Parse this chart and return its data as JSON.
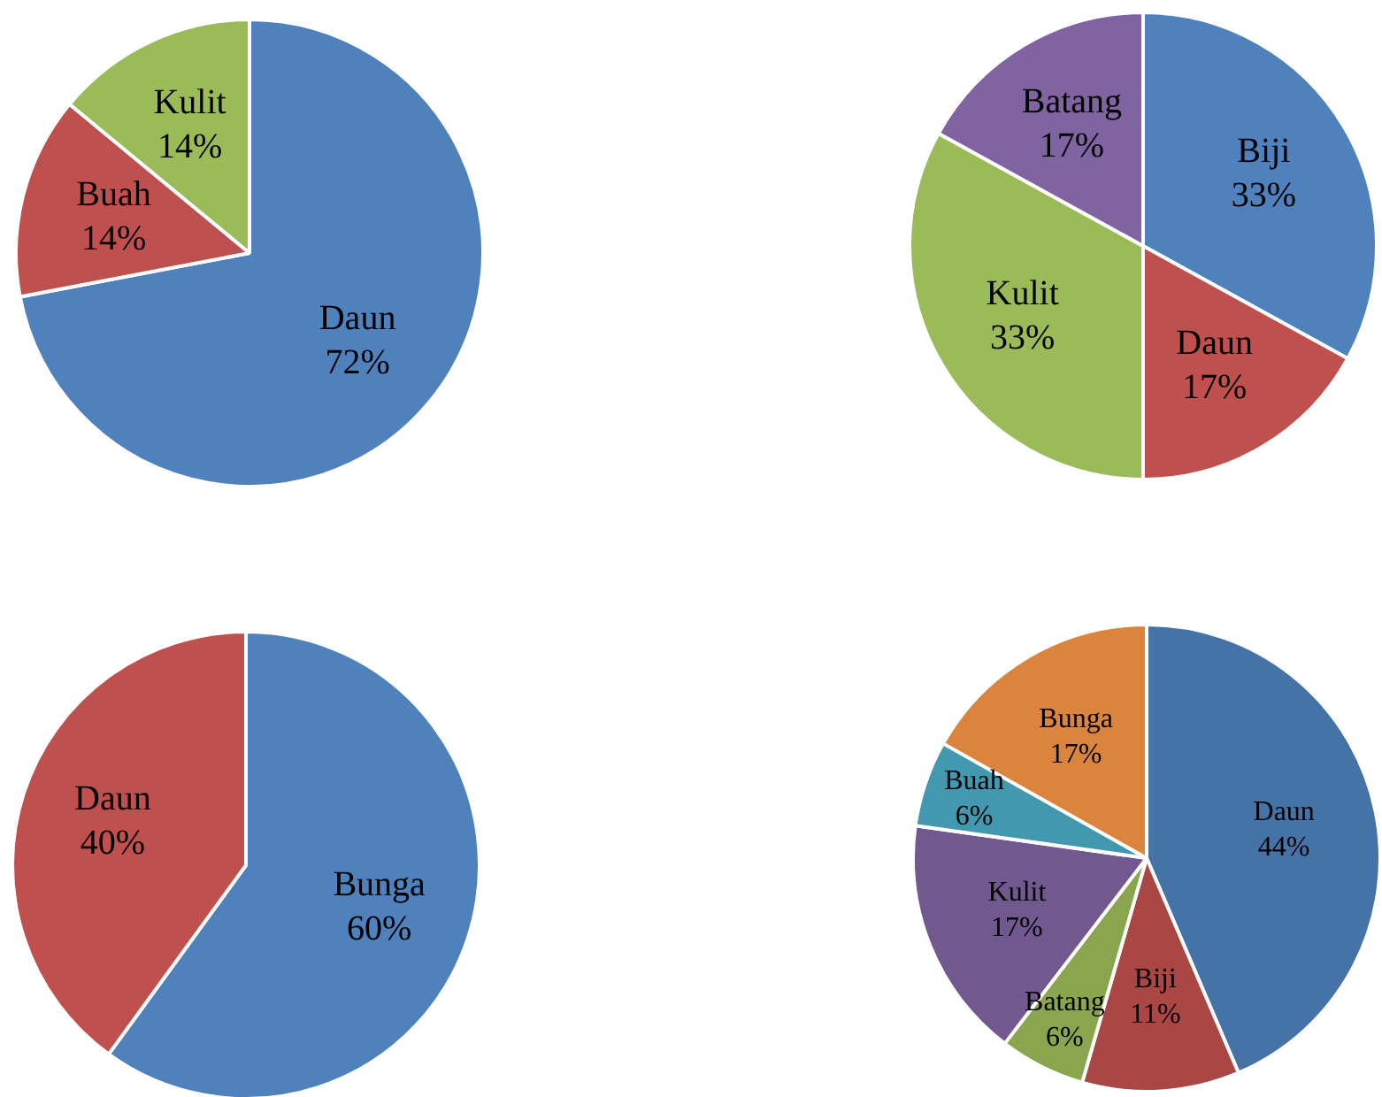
{
  "chart_data": [
    {
      "type": "pie",
      "categories": [
        "Daun",
        "Buah",
        "Kulit"
      ],
      "values": [
        72,
        14,
        14
      ],
      "value_labels": [
        "72%",
        "14%",
        "14%"
      ],
      "colors": [
        "#4f81bd",
        "#c0504d",
        "#9bbb59"
      ],
      "legend": false
    },
    {
      "type": "pie",
      "categories": [
        "Biji",
        "Daun",
        "Kulit",
        "Batang"
      ],
      "values": [
        33,
        17,
        33,
        17
      ],
      "value_labels": [
        "33%",
        "17%",
        "33%",
        "17%"
      ],
      "colors": [
        "#4f81bd",
        "#c0504d",
        "#9bbb59",
        "#8064a2"
      ],
      "legend": false
    },
    {
      "type": "pie",
      "categories": [
        "Bunga",
        "Daun"
      ],
      "values": [
        60,
        40
      ],
      "value_labels": [
        "60%",
        "40%"
      ],
      "colors": [
        "#4f81bd",
        "#c0504d"
      ],
      "legend": false
    },
    {
      "type": "pie",
      "categories": [
        "Daun",
        "Biji",
        "Batang",
        "Kulit",
        "Buah",
        "Bunga"
      ],
      "values": [
        44,
        11,
        6,
        17,
        6,
        17
      ],
      "value_labels": [
        "44%",
        "11%",
        "6%",
        "17%",
        "6%",
        "17%"
      ],
      "colors": [
        "#4572a7",
        "#aa4643",
        "#89a54e",
        "#71588f",
        "#4198af",
        "#db843d"
      ],
      "legend": false
    }
  ]
}
